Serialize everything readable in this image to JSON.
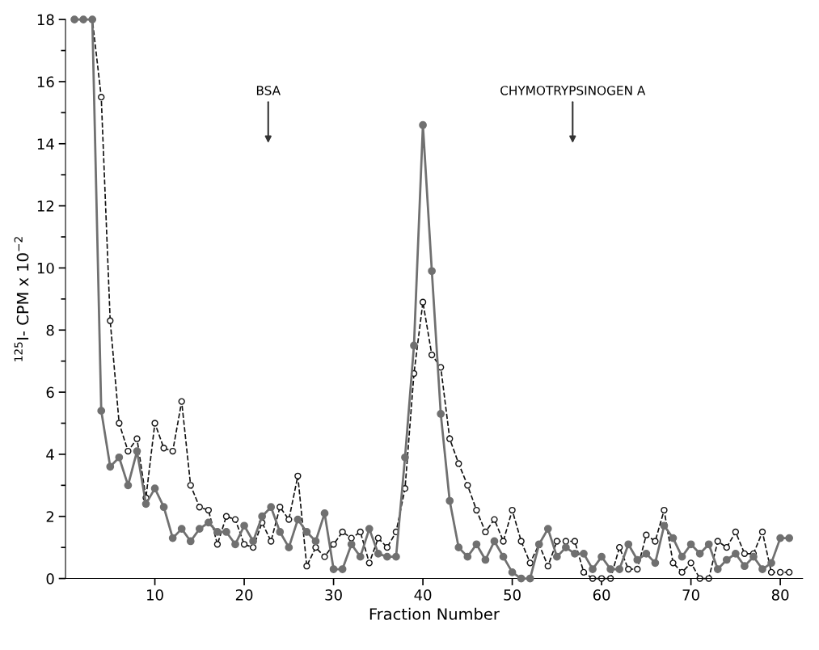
{
  "chart_data": {
    "type": "line",
    "xlabel": "Fraction Number",
    "ylabel": "$^{125}$I- CPM x 10$^{−2}$",
    "x": [
      1,
      2,
      3,
      4,
      5,
      6,
      7,
      8,
      9,
      10,
      11,
      12,
      13,
      14,
      15,
      16,
      17,
      18,
      19,
      20,
      21,
      22,
      23,
      24,
      25,
      26,
      27,
      28,
      29,
      30,
      31,
      32,
      33,
      34,
      35,
      36,
      37,
      38,
      39,
      40,
      41,
      42,
      43,
      44,
      45,
      46,
      47,
      48,
      49,
      50,
      51,
      52,
      53,
      54,
      55,
      56,
      57,
      58,
      59,
      60,
      61,
      62,
      63,
      64,
      65,
      66,
      67,
      68,
      69,
      70,
      71,
      72,
      73,
      74,
      75,
      76,
      77,
      78,
      79,
      80,
      81
    ],
    "series": [
      {
        "color": "#707070",
        "marker": "circle",
        "line_style": "solid",
        "values": [
          18,
          18,
          18,
          5.4,
          3.6,
          3.9,
          3.0,
          4.1,
          2.4,
          2.9,
          2.3,
          1.3,
          1.6,
          1.2,
          1.6,
          1.8,
          1.5,
          1.5,
          1.1,
          1.7,
          1.2,
          2.0,
          2.3,
          1.5,
          1.0,
          1.9,
          1.5,
          1.2,
          2.1,
          0.3,
          0.3,
          1.1,
          0.7,
          1.6,
          0.8,
          0.7,
          0.7,
          3.9,
          7.5,
          14.6,
          9.9,
          5.3,
          2.5,
          1.0,
          0.7,
          1.1,
          0.6,
          1.2,
          0.7,
          0.2,
          0,
          0,
          1.1,
          1.6,
          0.7,
          1.0,
          0.8,
          0.8,
          0.3,
          0.7,
          0.3,
          0.3,
          1.1,
          0.6,
          0.8,
          0.5,
          1.7,
          1.3,
          0.7,
          1.1,
          0.8,
          1.1,
          0.3,
          0.6,
          0.8,
          0.4,
          0.7,
          0.3,
          0.5,
          1.3,
          1.3
        ]
      },
      {
        "color": "#111111",
        "marker": "circle",
        "line_style": "dashed",
        "values": [
          18,
          18,
          18,
          15.5,
          8.3,
          5.0,
          4.1,
          4.5,
          2.6,
          5.0,
          4.2,
          4.1,
          5.7,
          3.0,
          2.3,
          2.2,
          1.1,
          2.0,
          1.9,
          1.1,
          1.0,
          1.8,
          1.2,
          2.3,
          1.9,
          3.3,
          0.4,
          1.0,
          0.7,
          1.1,
          1.5,
          1.3,
          1.5,
          0.5,
          1.3,
          1.0,
          1.5,
          2.9,
          6.6,
          8.9,
          7.2,
          6.8,
          4.5,
          3.7,
          3.0,
          2.2,
          1.5,
          1.9,
          1.2,
          2.2,
          1.2,
          0.5,
          1.1,
          0.4,
          1.2,
          1.2,
          1.2,
          0.2,
          0,
          0,
          0,
          1.0,
          0.3,
          0.3,
          1.4,
          1.2,
          2.2,
          0.5,
          0.2,
          0.5,
          0,
          0,
          1.2,
          1.0,
          1.5,
          0.8,
          0.8,
          1.5,
          0.2,
          0.2,
          0.2
        ]
      }
    ],
    "xlim": [
      0,
      82.5
    ],
    "xticks": [
      10,
      20,
      30,
      40,
      50,
      60,
      70,
      80
    ],
    "ylim": [
      0,
      18
    ],
    "yticks": [
      0,
      {
        "value": 1,
        "label": null
      },
      2,
      {
        "value": 3,
        "label": null
      },
      4,
      {
        "value": 5,
        "label": null
      },
      6,
      {
        "value": 7,
        "label": null
      },
      8,
      {
        "value": 9,
        "label": null
      },
      10,
      {
        "value": 11,
        "label": null
      },
      12,
      {
        "value": 13,
        "label": null
      },
      14,
      {
        "value": 15,
        "label": null
      },
      16,
      {
        "value": 17,
        "label": null
      },
      18
    ],
    "annotations": [
      "BSA",
      "CHYMOTRYPSINOGEN A"
    ],
    "grid": false,
    "legend": false
  }
}
